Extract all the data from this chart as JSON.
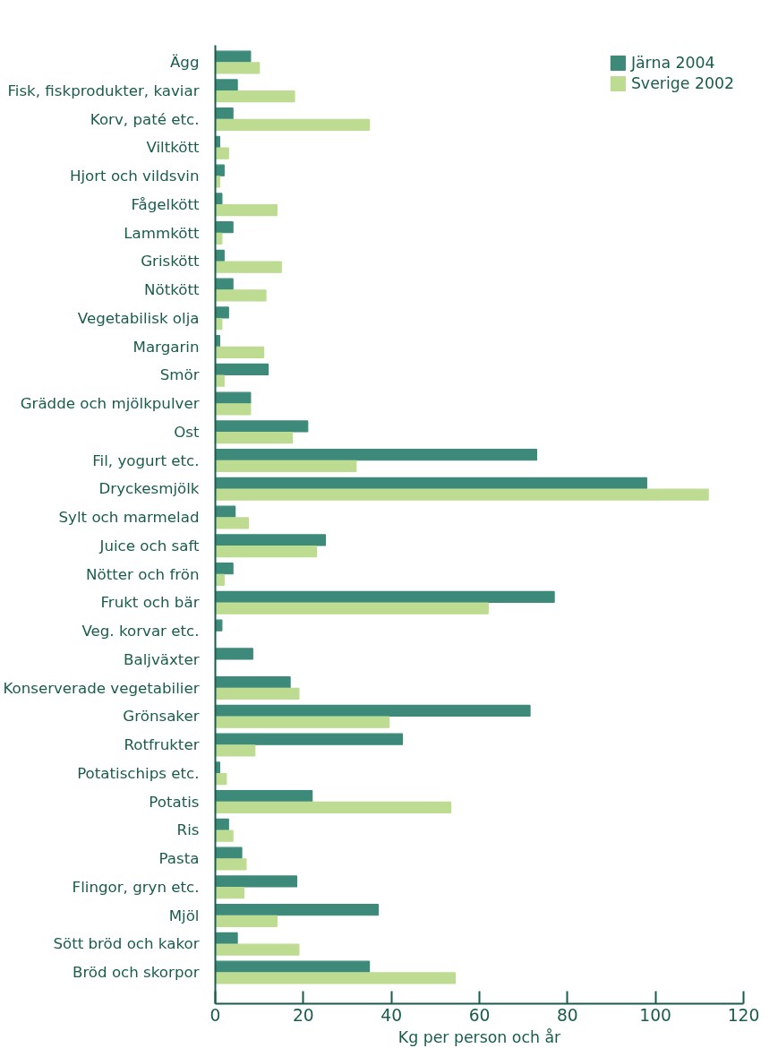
{
  "chart_data": {
    "type": "bar",
    "orientation": "horizontal",
    "xlabel": "Kg per person och år",
    "categories": [
      "Ägg",
      "Fisk, fiskprodukter, kaviar",
      "Korv, paté etc.",
      "Viltkött",
      "Hjort och vildsvin",
      "Fågelkött",
      "Lammkött",
      "Griskött",
      "Nötkött",
      "Vegetabilisk olja",
      "Margarin",
      "Smör",
      "Grädde och mjölkpulver",
      "Ost",
      "Fil, yogurt etc.",
      "Dryckesmjölk",
      "Sylt och marmelad",
      "Juice och saft",
      "Nötter och frön",
      "Frukt och bär",
      "Veg. korvar etc.",
      "Baljväxter",
      "Konserverade vegetabilier",
      "Grönsaker",
      "Rotfrukter",
      "Potatischips etc.",
      "Potatis",
      "Ris",
      "Pasta",
      "Flingor, gryn etc.",
      "Mjöl",
      "Sött bröd och kakor",
      "Bröd och skorpor"
    ],
    "series": [
      {
        "name": "Järna 2004",
        "color": "#3d8a7a",
        "values": [
          8,
          5,
          4,
          1,
          2,
          1.5,
          4,
          2,
          4,
          3,
          1,
          12,
          8,
          21,
          73,
          98,
          4.5,
          25,
          4,
          77,
          1.5,
          8.5,
          17,
          71.5,
          42.5,
          1,
          22,
          3,
          6,
          18.5,
          37,
          5,
          35
        ]
      },
      {
        "name": "Sverige 2002",
        "color": "#bddc91",
        "values": [
          10,
          18,
          35,
          3,
          1,
          14,
          1.5,
          15,
          11.5,
          1.5,
          11,
          2,
          8,
          17.5,
          32,
          112,
          7.5,
          23,
          2,
          62,
          0,
          0,
          19,
          39.5,
          9,
          2.5,
          53.5,
          4,
          7,
          6.5,
          14,
          19,
          54.5
        ]
      }
    ],
    "xlim": [
      0,
      120
    ],
    "xticks": [
      0,
      20,
      40,
      60,
      80,
      100,
      120
    ],
    "grid": false,
    "legend": "top right"
  }
}
